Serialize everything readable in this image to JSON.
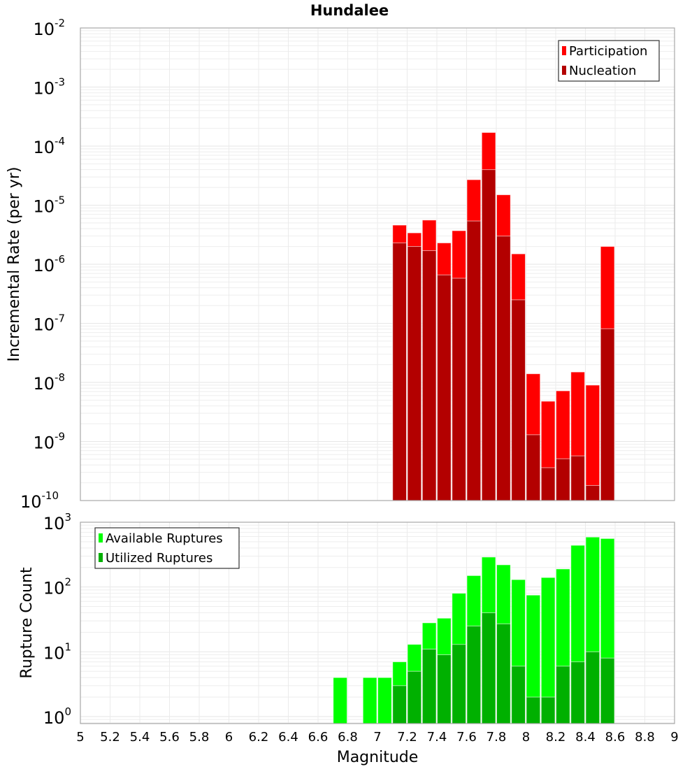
{
  "chart_data": [
    {
      "type": "bar",
      "title": "Hundalee",
      "xlabel": "Magnitude",
      "ylabel": "Incremental Rate (per yr)",
      "yscale": "log",
      "ylim_exp": [
        -10,
        -2
      ],
      "xlim": [
        5,
        9
      ],
      "bin_width": 0.1,
      "legend_placement": "top-right",
      "grid": true,
      "x": [
        7.15,
        7.25,
        7.35,
        7.45,
        7.55,
        7.65,
        7.75,
        7.85,
        7.95,
        8.05,
        8.15,
        8.25,
        8.35,
        8.45,
        8.55
      ],
      "series": [
        {
          "name": "Participation",
          "color": "#ff0000",
          "values": [
            4.6e-06,
            3.4e-06,
            5.6e-06,
            2.3e-06,
            3.7e-06,
            2.7e-05,
            0.00017,
            1.5e-05,
            1.5e-06,
            1.4e-08,
            4.8e-09,
            7.2e-09,
            1.5e-08,
            9e-09,
            2e-06
          ]
        },
        {
          "name": "Nucleation",
          "color": "#b30000",
          "values": [
            2.3e-06,
            2e-06,
            1.7e-06,
            6.6e-07,
            5.8e-07,
            5.4e-06,
            4e-05,
            3e-06,
            2.5e-07,
            1.3e-09,
            3.6e-10,
            5.1e-10,
            5.7e-10,
            1.8e-10,
            8.1e-08
          ]
        }
      ]
    },
    {
      "type": "bar",
      "xlabel": "Magnitude",
      "ylabel": "Rupture Count",
      "yscale": "log",
      "ylim": [
        0.78,
        1000
      ],
      "xlim": [
        5,
        9
      ],
      "bin_width": 0.1,
      "legend_placement": "top-left",
      "grid": true,
      "x": [
        6.75,
        6.95,
        7.05,
        7.15,
        7.25,
        7.35,
        7.45,
        7.55,
        7.65,
        7.75,
        7.85,
        7.95,
        8.05,
        8.15,
        8.25,
        8.35,
        8.45,
        8.55
      ],
      "series": [
        {
          "name": "Available Ruptures",
          "color": "#00ff00",
          "values": [
            4,
            4,
            4,
            7,
            13,
            28,
            33,
            80,
            150,
            290,
            220,
            130,
            75,
            140,
            190,
            440,
            590,
            560
          ]
        },
        {
          "name": "Utilized Ruptures",
          "color": "#00b000",
          "values": [
            0,
            0,
            0,
            3,
            5,
            11,
            9,
            13,
            25,
            40,
            27,
            6,
            2,
            2,
            6,
            7,
            10,
            8
          ]
        }
      ]
    }
  ],
  "top_y_ticks": [
    {
      "base": "10",
      "exp": "-2"
    },
    {
      "base": "10",
      "exp": "-3"
    },
    {
      "base": "10",
      "exp": "-4"
    },
    {
      "base": "10",
      "exp": "-5"
    },
    {
      "base": "10",
      "exp": "-6"
    },
    {
      "base": "10",
      "exp": "-7"
    },
    {
      "base": "10",
      "exp": "-8"
    },
    {
      "base": "10",
      "exp": "-9"
    },
    {
      "base": "10",
      "exp": "-10"
    }
  ],
  "bottom_y_ticks": [
    {
      "base": "10",
      "exp": "3"
    },
    {
      "base": "10",
      "exp": "2"
    },
    {
      "base": "10",
      "exp": "1"
    },
    {
      "base": "10",
      "exp": "0"
    }
  ],
  "x_ticks": [
    "5",
    "5.2",
    "5.4",
    "5.6",
    "5.8",
    "6",
    "6.2",
    "6.4",
    "6.6",
    "6.8",
    "7",
    "7.2",
    "7.4",
    "7.6",
    "7.8",
    "8",
    "8.2",
    "8.4",
    "8.6",
    "8.8",
    "9"
  ]
}
